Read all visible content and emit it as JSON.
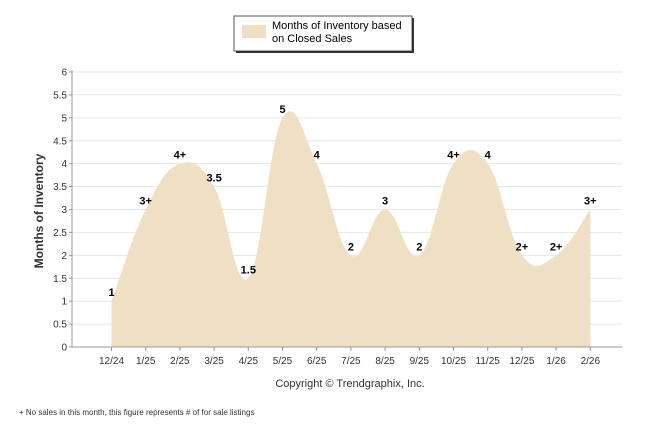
{
  "chart_data": {
    "type": "area",
    "title": "",
    "legend": {
      "entries": [
        "Months of Inventory based on Closed Sales"
      ],
      "lines": [
        "Months of Inventory based",
        "on Closed Sales"
      ],
      "placement": "top-center"
    },
    "ylabel": "Months of Inventory",
    "xlabel": "",
    "ylim": [
      0,
      6
    ],
    "yticks": [
      "0",
      "0.5",
      "1",
      "1.5",
      "2",
      "2.5",
      "3",
      "3.5",
      "4",
      "4.5",
      "5",
      "5.5",
      "6"
    ],
    "grid": true,
    "categories": [
      "12/24",
      "1/25",
      "2/25",
      "3/25",
      "4/25",
      "5/25",
      "6/25",
      "7/25",
      "8/25",
      "9/25",
      "10/25",
      "11/25",
      "12/25",
      "1/26",
      "2/26"
    ],
    "series": [
      {
        "name": "Months of Inventory based on Closed Sales",
        "color": "#efe0c5",
        "values": [
          1,
          3,
          4,
          3.5,
          1.5,
          5,
          4,
          2,
          3,
          2,
          4,
          4,
          2,
          2,
          3
        ],
        "labels": [
          "1",
          "3+",
          "4+",
          "3.5",
          "1.5",
          "5",
          "4",
          "2",
          "3",
          "2",
          "4+",
          "4",
          "2+",
          "2+",
          "3+"
        ]
      }
    ]
  },
  "copyright": "Copyright © Trendgraphix, Inc.",
  "footnote": "+ No sales in this month, this figure represents # of for sale listings"
}
